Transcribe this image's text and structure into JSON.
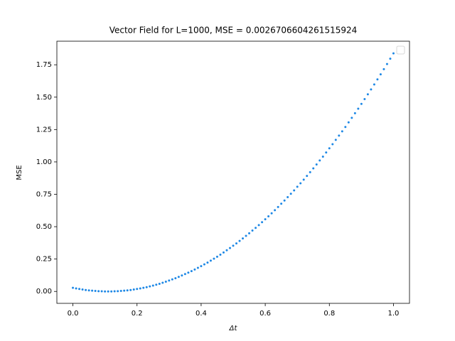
{
  "chart_data": {
    "type": "scatter",
    "title": "Vector Field for L=1000, MSE = 0.002670660426151592​4",
    "xlabel": "Δt",
    "ylabel": "MSE",
    "color": "#1e88e5",
    "legend": "upper right",
    "xlim": [
      -0.05,
      1.05
    ],
    "ylim": [
      -0.092,
      1.932
    ],
    "xticks": [
      {
        "value": 0,
        "label": "0.0"
      },
      0.2,
      0.4,
      0.6,
      0.8,
      {
        "value": 1,
        "label": "1.0"
      }
    ],
    "yticks": [
      {
        "value": 0,
        "label": "0.00"
      },
      0.25,
      {
        "value": 0.5,
        "label": "0.50"
      },
      0.75,
      {
        "value": 1,
        "label": "1.00"
      },
      1.25,
      {
        "value": 1.5,
        "label": "1.50"
      },
      1.75
    ],
    "x": [
      0,
      0.01,
      0.02,
      0.03,
      0.04,
      0.05,
      0.06,
      0.07,
      0.08,
      0.09,
      0.1,
      0.11,
      0.12,
      0.13,
      0.14,
      0.15,
      0.16,
      0.17,
      0.18,
      0.19,
      0.2,
      0.21,
      0.22,
      0.23,
      0.24,
      0.25,
      0.26,
      0.27,
      0.28,
      0.29,
      0.3,
      0.31,
      0.32,
      0.33,
      0.34,
      0.35,
      0.36,
      0.37,
      0.38,
      0.39,
      0.4,
      0.41,
      0.42,
      0.43,
      0.44,
      0.45,
      0.46,
      0.47,
      0.48,
      0.49,
      0.5,
      0.51,
      0.52,
      0.53,
      0.54,
      0.55,
      0.56,
      0.57,
      0.58,
      0.59,
      0.6,
      0.61,
      0.62,
      0.63,
      0.64,
      0.65,
      0.66,
      0.67,
      0.68,
      0.69,
      0.7,
      0.71,
      0.72,
      0.73,
      0.74,
      0.75,
      0.76,
      0.77,
      0.78,
      0.79,
      0.8,
      0.81,
      0.82,
      0.83,
      0.84,
      0.85,
      0.86,
      0.87,
      0.88,
      0.89,
      0.9,
      0.91,
      0.92,
      0.93,
      0.94,
      0.95,
      0.96,
      0.97,
      0.98,
      0.99,
      1
    ],
    "values": [
      0.028,
      0.023,
      0.019,
      0.015,
      0.011,
      0.008,
      0.006,
      0.004,
      0.002,
      0.001,
      0,
      0,
      0,
      0.001,
      0.002,
      0.004,
      0.006,
      0.008,
      0.011,
      0.015,
      0.019,
      0.023,
      0.028,
      0.033,
      0.039,
      0.045,
      0.052,
      0.059,
      0.067,
      0.075,
      0.084,
      0.093,
      0.102,
      0.112,
      0.123,
      0.134,
      0.145,
      0.157,
      0.169,
      0.182,
      0.195,
      0.209,
      0.223,
      0.238,
      0.253,
      0.268,
      0.284,
      0.301,
      0.318,
      0.335,
      0.353,
      0.371,
      0.39,
      0.409,
      0.429,
      0.449,
      0.47,
      0.491,
      0.512,
      0.535,
      0.557,
      0.58,
      0.603,
      0.627,
      0.652,
      0.677,
      0.702,
      0.728,
      0.754,
      0.78,
      0.808,
      0.835,
      0.863,
      0.892,
      0.921,
      0.95,
      0.98,
      1.011,
      1.041,
      1.073,
      1.105,
      1.137,
      1.17,
      1.203,
      1.236,
      1.27,
      1.305,
      1.34,
      1.376,
      1.411,
      1.448,
      1.485,
      1.522,
      1.56,
      1.598,
      1.637,
      1.676,
      1.716,
      1.756,
      1.797,
      1.838
    ]
  }
}
